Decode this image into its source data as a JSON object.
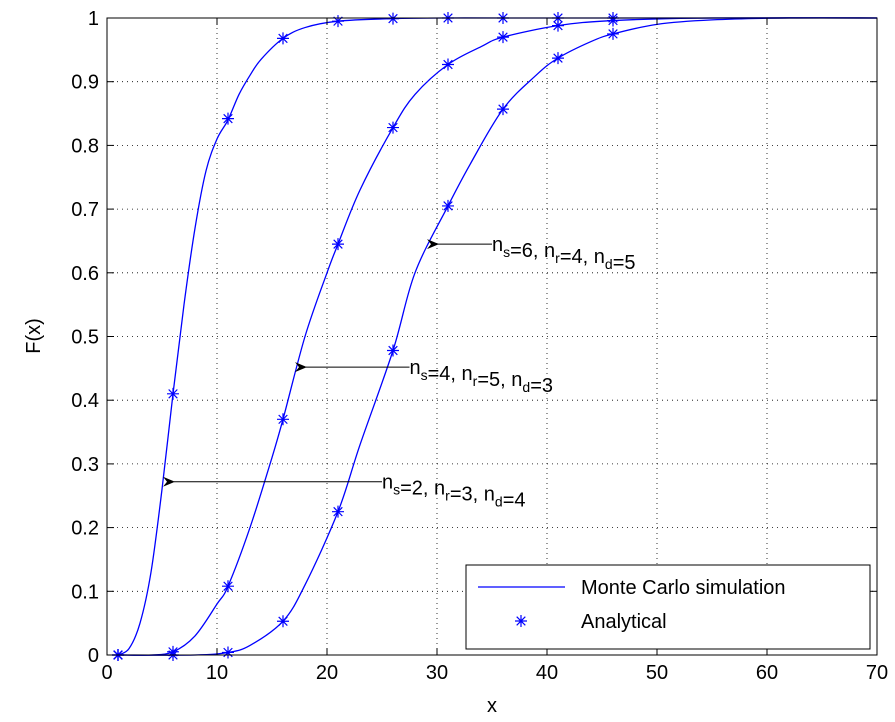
{
  "chart_data": {
    "type": "line",
    "title": "",
    "xlabel": "x",
    "ylabel": "F(x)",
    "xlim": [
      0,
      70
    ],
    "ylim": [
      0,
      1
    ],
    "xticks": [
      0,
      10,
      20,
      30,
      40,
      50,
      60,
      70
    ],
    "yticks": [
      0,
      0.1,
      0.2,
      0.3,
      0.4,
      0.5,
      0.6,
      0.7,
      0.8,
      0.9,
      1
    ],
    "xtick_labels": [
      "0",
      "10",
      "20",
      "30",
      "40",
      "50",
      "60",
      "70"
    ],
    "ytick_labels": [
      "0",
      "0.1",
      "0.2",
      "0.3",
      "0.4",
      "0.5",
      "0.6",
      "0.7",
      "0.8",
      "0.9",
      "1"
    ],
    "grid": true,
    "legend_position": "bottom-right",
    "color": "#0000ff",
    "series": [
      {
        "name": "Monte Carlo simulation",
        "style": "line",
        "curves": [
          {
            "x": [
              1,
              2,
              3,
              4,
              5,
              6,
              7,
              8,
              9,
              10,
              11,
              12,
              13,
              14,
              16,
              18,
              21,
              26,
              31,
              40,
              70
            ],
            "y": [
              0,
              0.01,
              0.05,
              0.13,
              0.26,
              0.41,
              0.55,
              0.67,
              0.76,
              0.81,
              0.84,
              0.88,
              0.91,
              0.935,
              0.968,
              0.985,
              0.995,
              0.999,
              1,
              1,
              1
            ]
          },
          {
            "x": [
              1,
              4,
              6,
              8,
              10,
              11,
              13,
              15,
              16,
              18,
              20,
              21,
              23,
              26,
              28,
              31,
              34,
              36,
              41,
              46,
              55,
              70
            ],
            "y": [
              0,
              0,
              0.005,
              0.03,
              0.08,
              0.108,
              0.2,
              0.31,
              0.37,
              0.5,
              0.6,
              0.645,
              0.73,
              0.828,
              0.88,
              0.927,
              0.955,
              0.97,
              0.988,
              0.996,
              1,
              1
            ]
          },
          {
            "x": [
              1,
              8,
              11,
              13,
              16,
              18,
              21,
              23,
              26,
              28,
              31,
              33,
              36,
              39,
              41,
              44,
              46,
              50,
              55,
              62,
              70
            ],
            "y": [
              0,
              0,
              0.004,
              0.015,
              0.053,
              0.11,
              0.225,
              0.33,
              0.478,
              0.6,
              0.705,
              0.77,
              0.857,
              0.91,
              0.937,
              0.963,
              0.975,
              0.99,
              0.997,
              1,
              1
            ]
          }
        ]
      },
      {
        "name": "Analytical",
        "style": "markers",
        "curves": [
          {
            "x": [
              1,
              6,
              11,
              16,
              21,
              26,
              31,
              36,
              41,
              46
            ],
            "y": [
              0,
              0.41,
              0.842,
              0.968,
              0.995,
              0.999,
              1,
              1,
              1,
              1
            ]
          },
          {
            "x": [
              1,
              6,
              11,
              16,
              21,
              26,
              31,
              36,
              41,
              46
            ],
            "y": [
              0,
              0.005,
              0.108,
              0.37,
              0.645,
              0.828,
              0.927,
              0.97,
              0.988,
              0.996
            ]
          },
          {
            "x": [
              1,
              6,
              11,
              16,
              21,
              26,
              31,
              36,
              41,
              46
            ],
            "y": [
              0,
              0,
              0.004,
              0.053,
              0.225,
              0.478,
              0.705,
              0.857,
              0.937,
              0.975
            ]
          }
        ]
      }
    ],
    "annotations": [
      {
        "parts": [
          [
            "n",
            ""
          ],
          [
            "s",
            "sub"
          ],
          [
            "=6, n",
            ""
          ],
          [
            "r",
            "sub"
          ],
          [
            "=4, n",
            ""
          ],
          [
            "d",
            "sub"
          ],
          [
            "=5",
            ""
          ]
        ],
        "text_at": [
          35,
          0.645
        ],
        "arrow_from": [
          35,
          0.645
        ],
        "arrow_to": [
          29,
          0.645
        ]
      },
      {
        "parts": [
          [
            "n",
            ""
          ],
          [
            "s",
            "sub"
          ],
          [
            "=4, n",
            ""
          ],
          [
            "r",
            "sub"
          ],
          [
            "=5, n",
            ""
          ],
          [
            "d",
            "sub"
          ],
          [
            "=3",
            ""
          ]
        ],
        "text_at": [
          27.5,
          0.452
        ],
        "arrow_from": [
          27.5,
          0.452
        ],
        "arrow_to": [
          17,
          0.452
        ]
      },
      {
        "parts": [
          [
            "n",
            ""
          ],
          [
            "s",
            "sub"
          ],
          [
            "=2, n",
            ""
          ],
          [
            "r",
            "sub"
          ],
          [
            "=3, n",
            ""
          ],
          [
            "d",
            "sub"
          ],
          [
            "=4",
            ""
          ]
        ],
        "text_at": [
          25,
          0.272
        ],
        "arrow_from": [
          25,
          0.272
        ],
        "arrow_to": [
          5,
          0.272
        ]
      }
    ]
  }
}
